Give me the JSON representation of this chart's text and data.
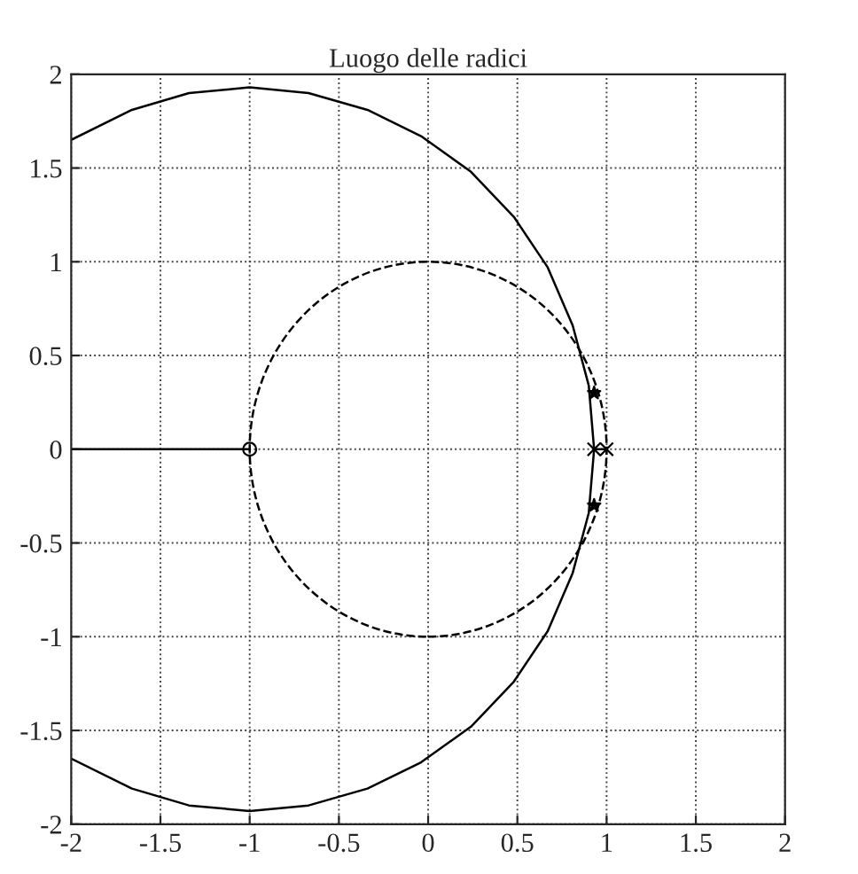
{
  "chart_data": {
    "type": "line",
    "title": "Luogo delle radici",
    "series": [
      {
        "color": "#000000",
        "line_style": "solid",
        "x": [
          -2.0,
          -1.66,
          -1.34,
          -1.0,
          -0.67,
          -0.34,
          -0.04,
          0.24,
          0.48,
          0.67,
          0.81,
          0.9,
          0.93,
          0.9,
          0.81,
          0.67,
          0.48,
          0.24,
          -0.04,
          -0.34,
          -0.67,
          -1.0,
          -1.34,
          -1.66,
          -2.0
        ],
        "values": [
          1.65,
          1.81,
          1.9,
          1.93,
          1.9,
          1.81,
          1.67,
          1.48,
          1.24,
          0.97,
          0.66,
          0.34,
          0,
          -0.34,
          -0.66,
          -0.97,
          -1.24,
          -1.48,
          -1.67,
          -1.81,
          -1.9,
          -1.93,
          -1.9,
          -1.81,
          -1.65
        ]
      },
      {
        "color": "#000000",
        "line_style": "solid",
        "x": [
          -2,
          -1
        ],
        "values": [
          0,
          0
        ]
      },
      {
        "color": "#000000",
        "line_style": "solid",
        "x": [
          0.93,
          1.0
        ],
        "values": [
          0,
          0
        ]
      },
      {
        "type": "scatter",
        "color": "#000000",
        "marker": "cross",
        "x": [
          0.93,
          1.0
        ],
        "values": [
          0,
          0
        ]
      },
      {
        "type": "scatter",
        "color": "#000000",
        "marker": "circle",
        "x": [
          -1
        ],
        "values": [
          0
        ]
      },
      {
        "type": "scatter",
        "color": "#000000",
        "marker": "star",
        "x": [
          0.93,
          0.93
        ],
        "values": [
          0.3,
          -0.3
        ]
      }
    ],
    "xlim": [
      -2,
      2
    ],
    "ylim": [
      -2,
      2
    ],
    "xticks": [
      -2,
      -1.5,
      -1,
      -0.5,
      0,
      0.5,
      1,
      1.5,
      2
    ],
    "yticks": [
      -2,
      -1.5,
      -1,
      -0.5,
      0,
      0.5,
      1,
      1.5,
      2
    ],
    "grid": true
  }
}
